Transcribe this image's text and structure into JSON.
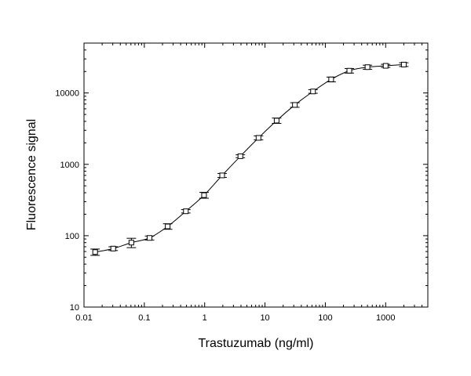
{
  "chart_data": {
    "type": "scatter",
    "title": "",
    "xlabel": "Trastuzumab  (ng/ml)",
    "ylabel": "Fluorescence signal",
    "x_scale": "log",
    "y_scale": "log",
    "xlim": [
      0.01,
      5000
    ],
    "ylim": [
      10,
      50000
    ],
    "grid": false,
    "legend": "none",
    "x_tick_labels": [
      "0.01",
      "0.1",
      "1",
      "10",
      "100",
      "1000"
    ],
    "y_tick_labels": [
      "10",
      "100",
      "1000",
      "10000"
    ],
    "series": [
      {
        "marker": "open-square",
        "fit_line": "sigmoidal",
        "x": [
          0.0153,
          0.0305,
          0.061,
          0.122,
          0.244,
          0.488,
          0.977,
          1.95,
          3.91,
          7.81,
          15.6,
          31.3,
          62.5,
          125,
          250,
          500,
          1000,
          2000
        ],
        "y": [
          59,
          66,
          80,
          93,
          135,
          220,
          370,
          700,
          1300,
          2350,
          4100,
          6800,
          10500,
          15500,
          20500,
          23000,
          24000,
          25000
        ],
        "err": [
          6,
          4,
          12,
          6,
          12,
          12,
          35,
          45,
          60,
          150,
          350,
          500,
          600,
          1200,
          1500,
          1500,
          1200,
          1500
        ]
      }
    ]
  }
}
